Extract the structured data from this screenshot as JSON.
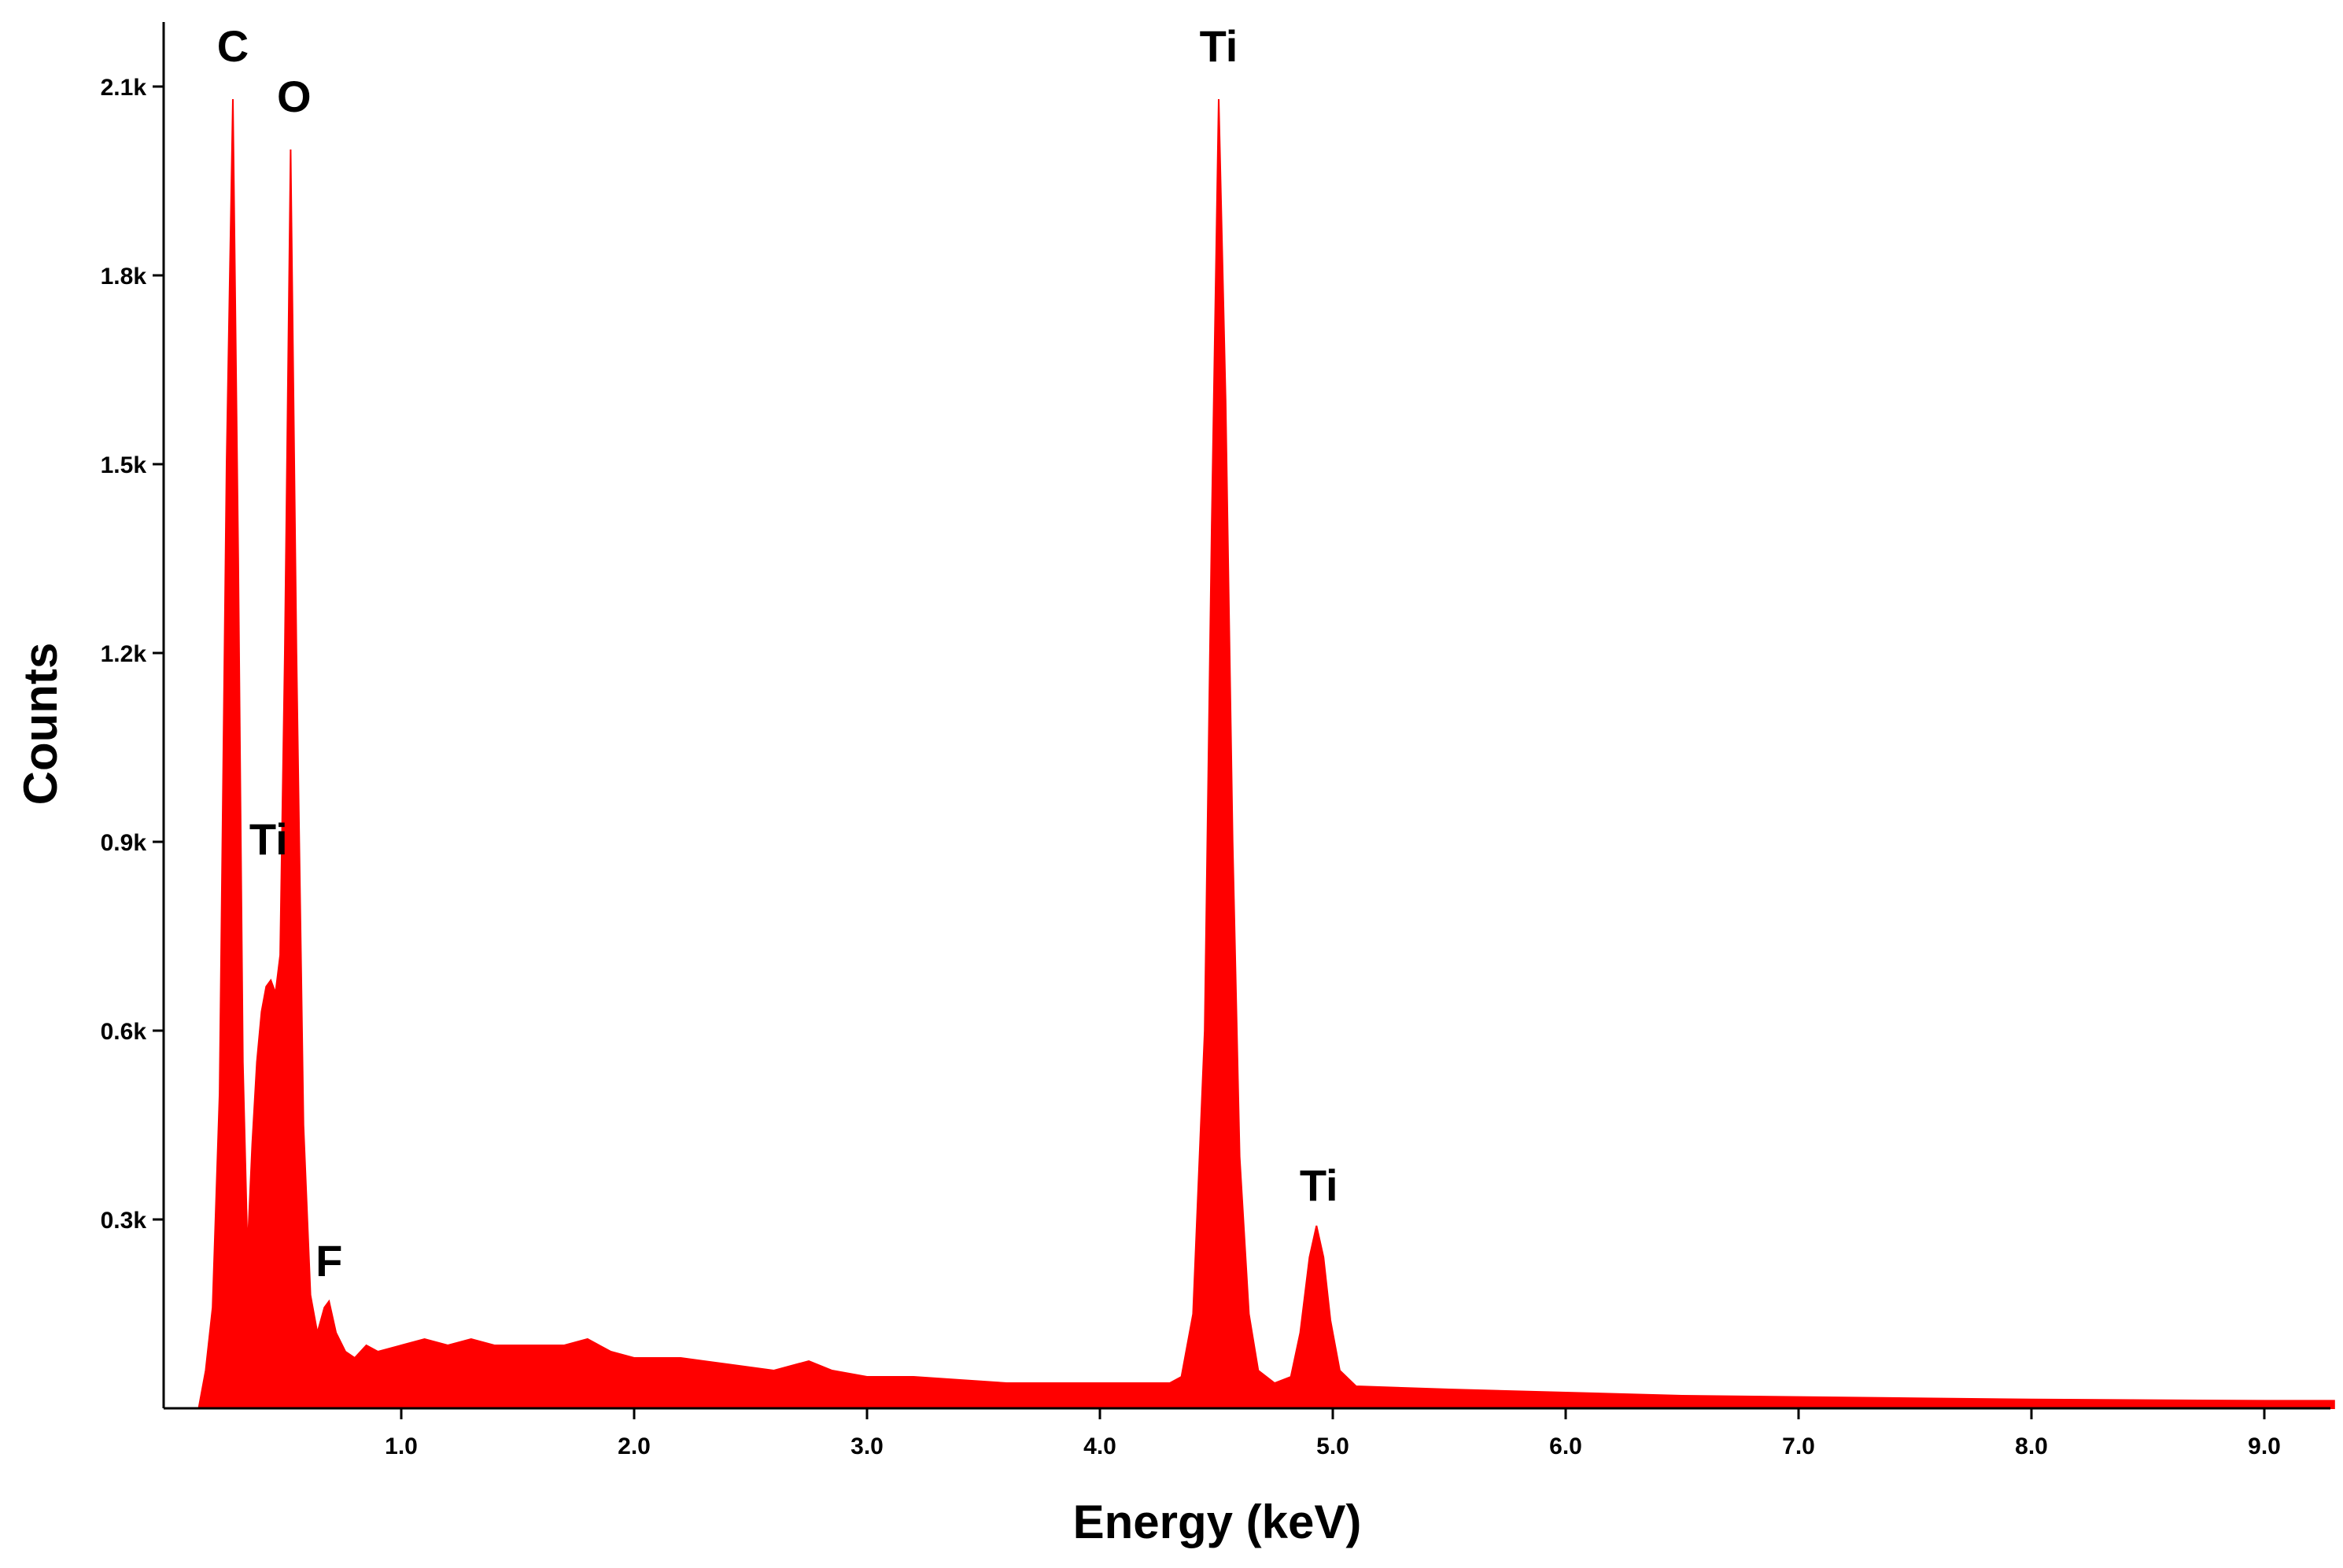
{
  "chart_data": {
    "type": "area",
    "title": "",
    "xlabel": "Energy (keV)",
    "ylabel": "Counts",
    "xlim": [
      0.0,
      9.3
    ],
    "ylim": [
      0,
      2.2
    ],
    "y_unit_note": "counts in thousands",
    "grid": false,
    "legend": "none",
    "x_ticks": [
      {
        "value": 1.0,
        "label": "1.0"
      },
      {
        "value": 2.0,
        "label": "2.0"
      },
      {
        "value": 3.0,
        "label": "3.0"
      },
      {
        "value": 4.0,
        "label": "4.0"
      },
      {
        "value": 5.0,
        "label": "5.0"
      },
      {
        "value": 6.0,
        "label": "6.0"
      },
      {
        "value": 7.0,
        "label": "7.0"
      },
      {
        "value": 8.0,
        "label": "8.0"
      },
      {
        "value": 9.0,
        "label": "9.0"
      }
    ],
    "y_ticks": [
      {
        "value": 0.3,
        "label": "0.3k"
      },
      {
        "value": 0.6,
        "label": "0.6k"
      },
      {
        "value": 0.9,
        "label": "0.9k"
      },
      {
        "value": 1.2,
        "label": "1.2k"
      },
      {
        "value": 1.5,
        "label": "1.5k"
      },
      {
        "value": 1.8,
        "label": "1.8k"
      },
      {
        "value": 2.1,
        "label": "2.1k"
      }
    ],
    "series": [
      {
        "color": "#ff0000",
        "points": [
          [
            0.13,
            0.0
          ],
          [
            0.16,
            0.06
          ],
          [
            0.19,
            0.16
          ],
          [
            0.22,
            0.5
          ],
          [
            0.25,
            1.5
          ],
          [
            0.277,
            2.08
          ],
          [
            0.3,
            1.35
          ],
          [
            0.32,
            0.55
          ],
          [
            0.34,
            0.25
          ],
          [
            0.36,
            0.42
          ],
          [
            0.38,
            0.55
          ],
          [
            0.4,
            0.63
          ],
          [
            0.42,
            0.67
          ],
          [
            0.44,
            0.68
          ],
          [
            0.46,
            0.66
          ],
          [
            0.48,
            0.72
          ],
          [
            0.5,
            1.2
          ],
          [
            0.525,
            2.0
          ],
          [
            0.55,
            1.2
          ],
          [
            0.58,
            0.45
          ],
          [
            0.61,
            0.18
          ],
          [
            0.64,
            0.12
          ],
          [
            0.67,
            0.16
          ],
          [
            0.69,
            0.17
          ],
          [
            0.72,
            0.12
          ],
          [
            0.76,
            0.09
          ],
          [
            0.8,
            0.08
          ],
          [
            0.85,
            0.1
          ],
          [
            0.9,
            0.09
          ],
          [
            1.0,
            0.1
          ],
          [
            1.1,
            0.11
          ],
          [
            1.2,
            0.1
          ],
          [
            1.3,
            0.11
          ],
          [
            1.4,
            0.1
          ],
          [
            1.5,
            0.1
          ],
          [
            1.6,
            0.1
          ],
          [
            1.7,
            0.1
          ],
          [
            1.8,
            0.11
          ],
          [
            1.9,
            0.09
          ],
          [
            2.0,
            0.08
          ],
          [
            2.2,
            0.08
          ],
          [
            2.4,
            0.07
          ],
          [
            2.6,
            0.06
          ],
          [
            2.75,
            0.075
          ],
          [
            2.85,
            0.06
          ],
          [
            3.0,
            0.05
          ],
          [
            3.2,
            0.05
          ],
          [
            3.4,
            0.045
          ],
          [
            3.6,
            0.04
          ],
          [
            3.8,
            0.04
          ],
          [
            4.0,
            0.04
          ],
          [
            4.2,
            0.04
          ],
          [
            4.3,
            0.04
          ],
          [
            4.35,
            0.05
          ],
          [
            4.4,
            0.15
          ],
          [
            4.45,
            0.6
          ],
          [
            4.48,
            1.4
          ],
          [
            4.51,
            2.08
          ],
          [
            4.54,
            1.6
          ],
          [
            4.57,
            0.9
          ],
          [
            4.6,
            0.4
          ],
          [
            4.64,
            0.15
          ],
          [
            4.68,
            0.06
          ],
          [
            4.75,
            0.04
          ],
          [
            4.82,
            0.05
          ],
          [
            4.86,
            0.12
          ],
          [
            4.9,
            0.24
          ],
          [
            4.93,
            0.29
          ],
          [
            4.96,
            0.24
          ],
          [
            4.99,
            0.14
          ],
          [
            5.03,
            0.06
          ],
          [
            5.1,
            0.035
          ],
          [
            5.5,
            0.03
          ],
          [
            6.0,
            0.025
          ],
          [
            6.5,
            0.02
          ],
          [
            7.0,
            0.018
          ],
          [
            7.5,
            0.016
          ],
          [
            8.0,
            0.014
          ],
          [
            8.5,
            0.013
          ],
          [
            9.0,
            0.012
          ],
          [
            9.3,
            0.012
          ]
        ]
      }
    ],
    "annotations": [
      {
        "text": "C",
        "x": 0.277,
        "y": 2.14
      },
      {
        "text": "O",
        "x": 0.54,
        "y": 2.06
      },
      {
        "text": "Ti",
        "x": 0.43,
        "y": 0.88
      },
      {
        "text": "F",
        "x": 0.69,
        "y": 0.21
      },
      {
        "text": "Ti",
        "x": 4.51,
        "y": 2.14
      },
      {
        "text": "Ti",
        "x": 4.94,
        "y": 0.33
      }
    ]
  }
}
